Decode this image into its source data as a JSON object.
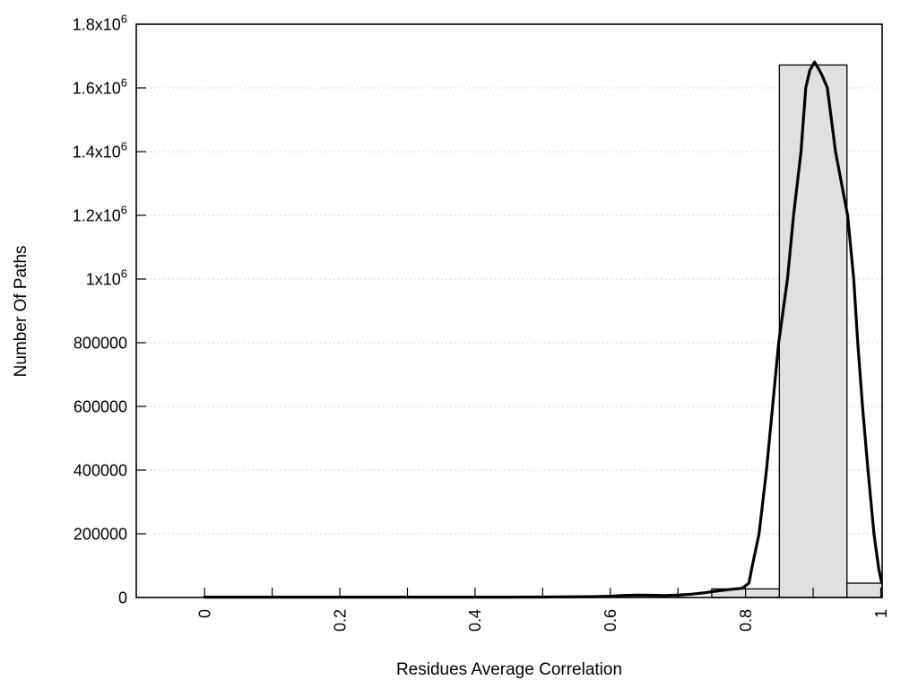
{
  "chart_data": {
    "type": "histogram",
    "title": "",
    "xlabel": "Residues Average Correlation",
    "ylabel": "Number Of Paths",
    "xlim": [
      -0.101,
      1.002
    ],
    "ylim": [
      0,
      1800000
    ],
    "grid": {
      "horizontal_dotted": true,
      "color": "#c8c8c8"
    },
    "x_ticks": {
      "step": 0.1,
      "min": 0,
      "max": 1.0,
      "labels": [
        {
          "value": 0.0,
          "label": "0"
        },
        {
          "value": 0.2,
          "label": "0.2"
        },
        {
          "value": 0.4,
          "label": "0.4"
        },
        {
          "value": 0.6,
          "label": "0.6"
        },
        {
          "value": 0.8,
          "label": "0.8"
        },
        {
          "value": 1.0,
          "label": "1"
        }
      ]
    },
    "y_ticks": [
      {
        "value": 0,
        "label": "0"
      },
      {
        "value": 200000,
        "label": "200000"
      },
      {
        "value": 400000,
        "label": "400000"
      },
      {
        "value": 600000,
        "label": "600000"
      },
      {
        "value": 800000,
        "label": "800000"
      },
      {
        "value": 1000000,
        "label": "1x10^6"
      },
      {
        "value": 1200000,
        "label": "1.2x10^6"
      },
      {
        "value": 1400000,
        "label": "1.4x10^6"
      },
      {
        "value": 1600000,
        "label": "1.6x10^6"
      },
      {
        "value": 1800000,
        "label": "1.8x10^6"
      }
    ],
    "histogram": {
      "fill": "#e0e0e0",
      "stroke": "#000000",
      "bin_width": 0.1,
      "bins": [
        {
          "center": 0.8,
          "count": 27000
        },
        {
          "center": 0.9,
          "count": 1672000
        },
        {
          "center": 1.0,
          "count": 45000
        }
      ]
    },
    "curve": {
      "color": "#000000",
      "stroke_width": 3.2,
      "points": [
        [
          0.0,
          1000
        ],
        [
          0.1,
          1000
        ],
        [
          0.2,
          1000
        ],
        [
          0.3,
          1000
        ],
        [
          0.4,
          1000
        ],
        [
          0.45,
          1000
        ],
        [
          0.5,
          1500
        ],
        [
          0.55,
          2200
        ],
        [
          0.58,
          2800
        ],
        [
          0.6,
          4000
        ],
        [
          0.62,
          6500
        ],
        [
          0.64,
          7500
        ],
        [
          0.66,
          7000
        ],
        [
          0.68,
          6200
        ],
        [
          0.7,
          7500
        ],
        [
          0.72,
          10500
        ],
        [
          0.74,
          15000
        ],
        [
          0.76,
          21000
        ],
        [
          0.78,
          26000
        ],
        [
          0.795,
          29000
        ],
        [
          0.805,
          45000
        ],
        [
          0.81,
          100000
        ],
        [
          0.82,
          200000
        ],
        [
          0.831,
          400000
        ],
        [
          0.84,
          600000
        ],
        [
          0.849,
          800000
        ],
        [
          0.862,
          1000000
        ],
        [
          0.871,
          1200000
        ],
        [
          0.882,
          1400000
        ],
        [
          0.889,
          1600000
        ],
        [
          0.895,
          1655000
        ],
        [
          0.902,
          1681000
        ],
        [
          0.908,
          1660000
        ],
        [
          0.913,
          1640000
        ],
        [
          0.921,
          1600000
        ],
        [
          0.933,
          1400000
        ],
        [
          0.942,
          1300000
        ],
        [
          0.951,
          1200000
        ],
        [
          0.96,
          1000000
        ],
        [
          0.966,
          800000
        ],
        [
          0.973,
          600000
        ],
        [
          0.981,
          400000
        ],
        [
          0.99,
          200000
        ],
        [
          0.997,
          90000
        ],
        [
          1.001,
          50000
        ]
      ]
    }
  }
}
